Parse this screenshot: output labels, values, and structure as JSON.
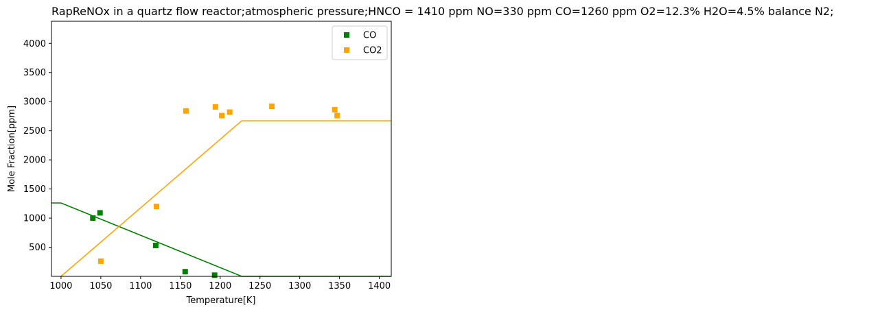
{
  "chart_data": {
    "type": "scatter",
    "title": "RapReNOx in a quartz flow reactor;atmospheric pressure;HNCO = 1410 ppm NO=330 ppm CO=1260 ppm O2=12.3% H2O=4.5% balance N2;",
    "xlabel": "Temperature[K]",
    "ylabel": "Mole Fraction[ppm]",
    "xlim": [
      988,
      1415
    ],
    "ylim": [
      0,
      4380
    ],
    "xticks": [
      1000,
      1050,
      1100,
      1150,
      1200,
      1250,
      1300,
      1350,
      1400
    ],
    "yticks": [
      500,
      1000,
      1500,
      2000,
      2500,
      3000,
      3500,
      4000
    ],
    "grid": false,
    "legend_position": "top-right",
    "series": [
      {
        "name": "CO",
        "color": "#008000",
        "points": [
          {
            "x": 1040,
            "y": 1000
          },
          {
            "x": 1049,
            "y": 1090
          },
          {
            "x": 1119,
            "y": 530
          },
          {
            "x": 1156,
            "y": 80
          },
          {
            "x": 1193,
            "y": 20
          }
        ],
        "line": [
          {
            "x": 988,
            "y": 1260
          },
          {
            "x": 1000,
            "y": 1260
          },
          {
            "x": 1227,
            "y": 0
          },
          {
            "x": 1415,
            "y": 0
          }
        ]
      },
      {
        "name": "CO2",
        "color": "#ffa500",
        "points": [
          {
            "x": 1050,
            "y": 260
          },
          {
            "x": 1120,
            "y": 1200
          },
          {
            "x": 1157,
            "y": 2840
          },
          {
            "x": 1194,
            "y": 2910
          },
          {
            "x": 1202,
            "y": 2760
          },
          {
            "x": 1212,
            "y": 2820
          },
          {
            "x": 1265,
            "y": 2920
          },
          {
            "x": 1344,
            "y": 2860
          },
          {
            "x": 1347,
            "y": 2760
          }
        ],
        "line": [
          {
            "x": 1000,
            "y": 0
          },
          {
            "x": 1227,
            "y": 2670
          },
          {
            "x": 1415,
            "y": 2670
          }
        ]
      }
    ]
  }
}
